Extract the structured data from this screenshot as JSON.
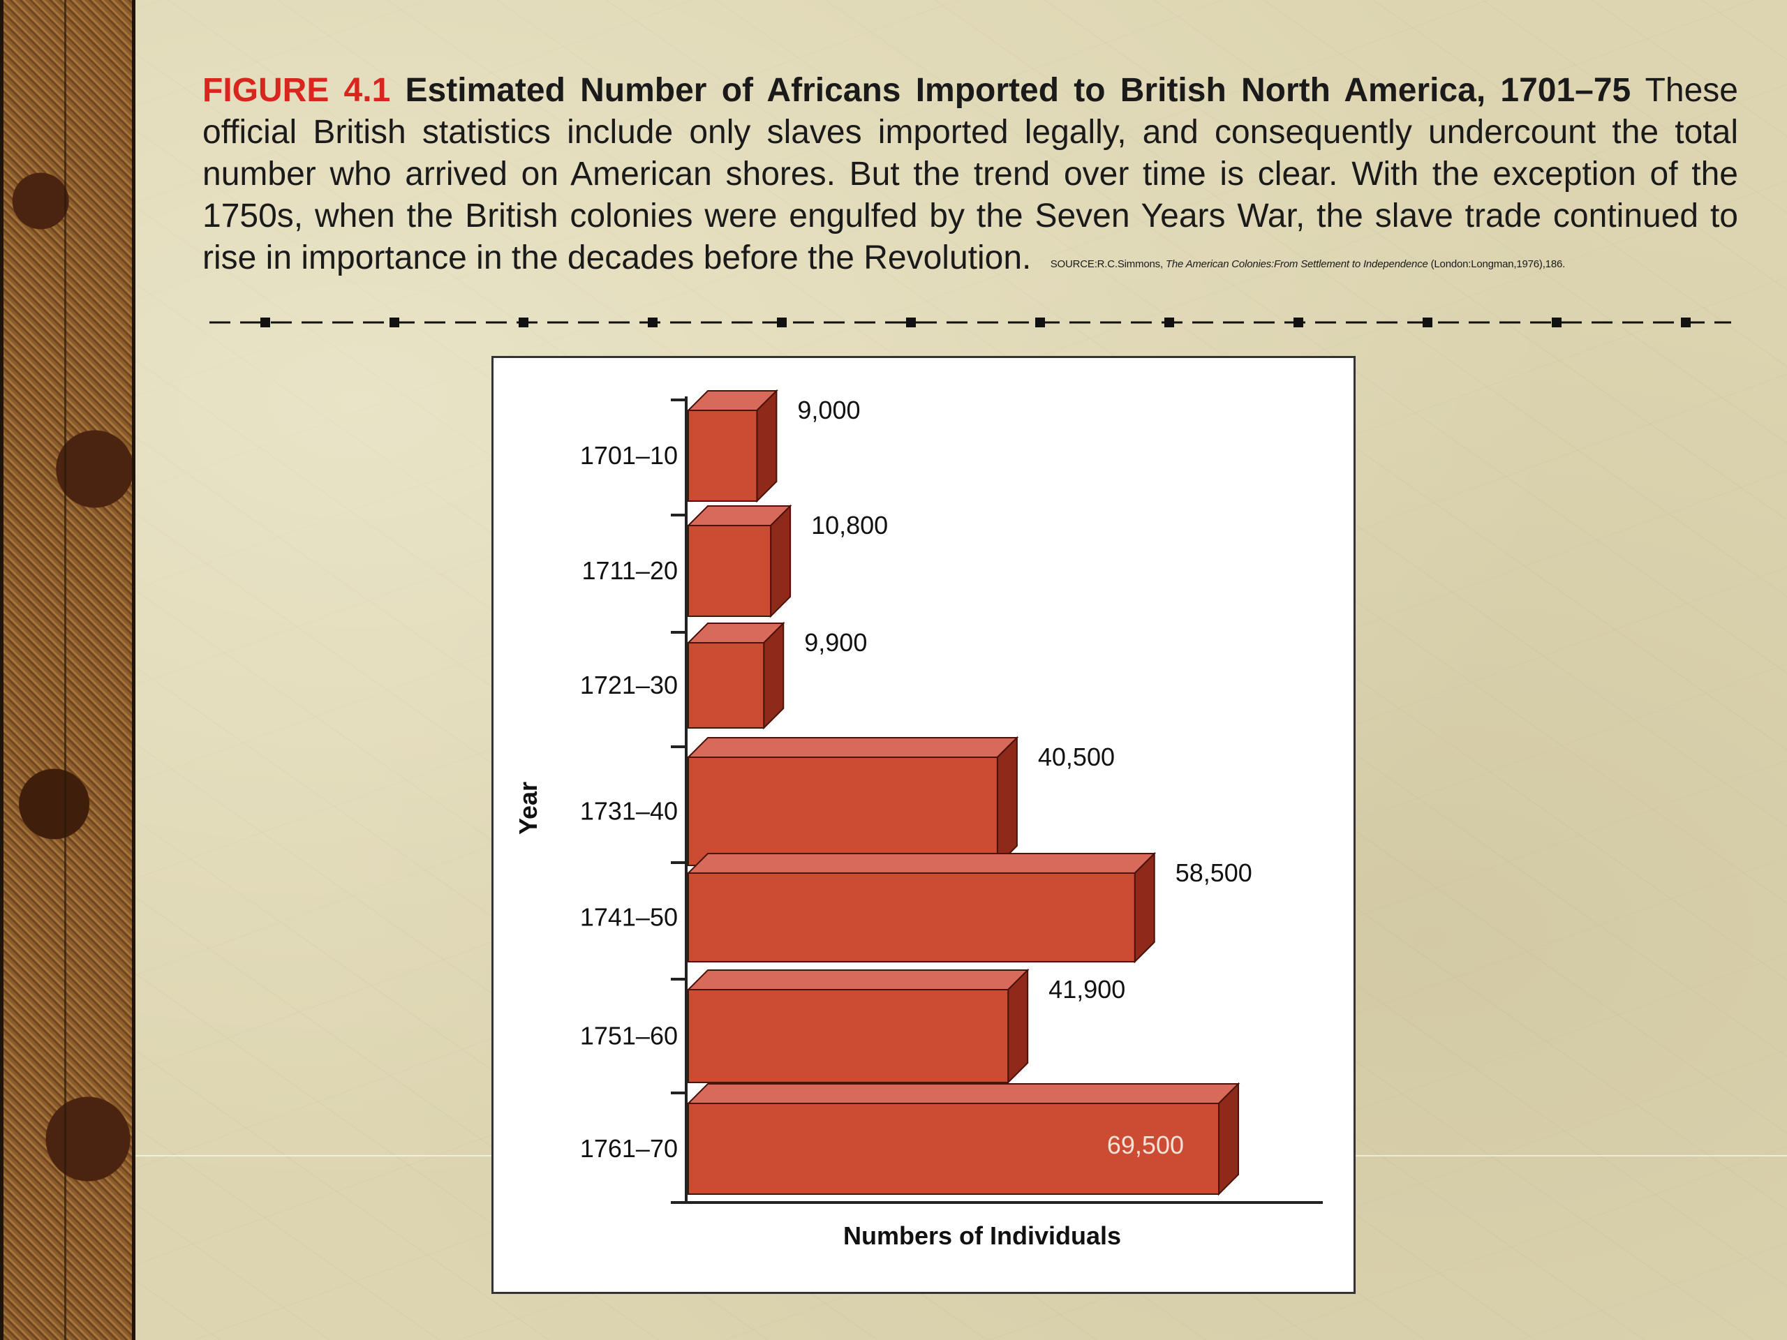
{
  "caption": {
    "figure_number": "FIGURE 4.1",
    "title": "Estimated Number of Africans Imported to British North America, 1701–75",
    "body": "These official British statistics include only slaves imported legally, and consequently undercount the total number who arrived on American shores. But the trend over time is clear. With the exception of the 1750s, when the British colonies were engulfed by the Seven Years War, the slave trade continued to rise in importance in the decades before the Revolution.",
    "source_prefix": "SOURCE:R.C.Simmons,",
    "source_title": "The American Colonies:From Settlement to Independence",
    "source_suffix": "(London:Longman,1976),186."
  },
  "chart_data": {
    "type": "bar",
    "orientation": "horizontal",
    "style": "3d",
    "categories": [
      "1701–10",
      "1711–20",
      "1721–30",
      "1731–40",
      "1741–50",
      "1751–60",
      "1761–70"
    ],
    "values": [
      9000,
      10800,
      9900,
      40500,
      58500,
      41900,
      69500
    ],
    "value_labels": [
      "9,000",
      "10,800",
      "9,900",
      "40,500",
      "58,500",
      "41,900",
      "69,500"
    ],
    "xlabel": "Numbers of Individuals",
    "ylabel": "Year",
    "xlim": [
      0,
      75000
    ],
    "grid": false,
    "legend": "none",
    "colors": {
      "bar_front": "#cc4b33",
      "bar_top": "#d86a5c",
      "bar_side": "#8f2a1b",
      "label_inside": "#f4e2d8",
      "caption_accent": "#d8261e"
    }
  }
}
